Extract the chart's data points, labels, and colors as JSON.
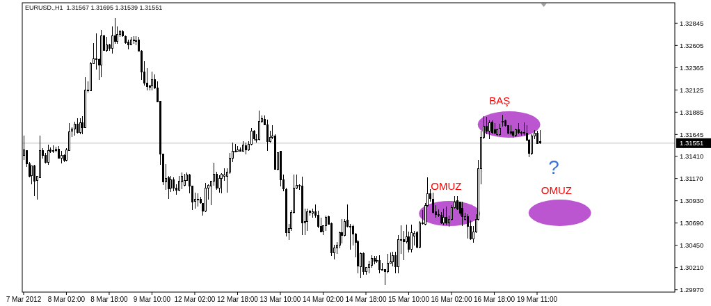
{
  "chart_data": {
    "type": "candlestick",
    "title": "EURUSD.,H1  1.31567 1.31695 1.31539 1.31551",
    "color": "#000000",
    "categories": [
      "7 Mar 2012",
      null,
      null,
      null,
      null,
      null,
      null,
      null,
      null,
      null,
      null,
      null,
      null,
      null,
      null,
      null,
      "8 Mar 02:00",
      null,
      null,
      null,
      null,
      null,
      null,
      null,
      null,
      null,
      null,
      null,
      null,
      null,
      null,
      null,
      "8 Mar 18:00",
      null,
      null,
      null,
      null,
      null,
      null,
      null,
      null,
      null,
      null,
      null,
      null,
      null,
      null,
      null,
      "9 Mar 10:00",
      null,
      null,
      null,
      null,
      null,
      null,
      null,
      null,
      null,
      null,
      null,
      null,
      null,
      null,
      null,
      "12 Mar 02:00",
      null,
      null,
      null,
      null,
      null,
      null,
      null,
      null,
      null,
      null,
      null,
      null,
      null,
      null,
      null,
      "12 Mar 18:00",
      null,
      null,
      null,
      null,
      null,
      null,
      null,
      null,
      null,
      null,
      null,
      null,
      null,
      null,
      null,
      "13 Mar 10:00",
      null,
      null,
      null,
      null,
      null,
      null,
      null,
      null,
      null,
      null,
      null,
      null,
      null,
      null,
      null,
      "14 Mar 02:00",
      null,
      null,
      null,
      null,
      null,
      null,
      null,
      null,
      null,
      null,
      null,
      null,
      null,
      null,
      null,
      "14 Mar 18:00",
      null,
      null,
      null,
      null,
      null,
      null,
      null,
      null,
      null,
      null,
      null,
      null,
      null,
      null,
      null,
      "15 Mar 10:00",
      null,
      null,
      null,
      null,
      null,
      null,
      null,
      null,
      null,
      null,
      null,
      null,
      null,
      null,
      null,
      "16 Mar 02:00",
      null,
      null,
      null,
      null,
      null,
      null,
      null,
      null,
      null,
      null,
      null,
      null,
      null,
      null,
      null,
      "16 Mar 18:00",
      null,
      null,
      null,
      null,
      null,
      null,
      null,
      null,
      null,
      null,
      null,
      null,
      null,
      null,
      null,
      "19 Mar 11:00",
      null,
      null,
      null,
      null,
      null,
      null,
      null,
      null,
      null,
      null,
      null,
      null,
      null,
      null,
      null,
      null,
      null,
      null,
      null,
      null,
      null,
      null,
      null,
      null,
      null,
      null,
      null,
      null,
      null,
      null,
      null,
      null,
      null,
      null,
      null,
      null,
      null,
      null,
      null,
      null,
      null,
      null,
      null,
      null,
      null,
      null,
      null,
      null,
      null,
      null,
      null
    ],
    "ohlc": [
      [
        1.3142,
        1.31632,
        1.3137,
        1.31482
      ],
      [
        1.3147,
        1.3147,
        1.31295,
        1.31332
      ],
      [
        1.31332,
        1.31345,
        1.31182,
        1.31195
      ],
      [
        1.312,
        1.31307,
        1.31107,
        1.31307
      ],
      [
        1.31307,
        1.3132,
        1.30982,
        1.31145
      ],
      [
        1.3115,
        1.31195,
        1.30945,
        1.31195
      ],
      [
        1.31182,
        1.31632,
        1.31182,
        1.3147
      ],
      [
        1.3147,
        1.315,
        1.31382,
        1.3142
      ],
      [
        1.3142,
        1.31445,
        1.31332,
        1.31345
      ],
      [
        1.31345,
        1.31532,
        1.31315,
        1.3147
      ],
      [
        1.31482,
        1.31507,
        1.31445,
        1.31465
      ],
      [
        1.31475,
        1.31525,
        1.31445,
        1.31462
      ],
      [
        1.3147,
        1.31512,
        1.3145,
        1.31487
      ],
      [
        1.3149,
        1.3152,
        1.31382,
        1.3139
      ],
      [
        1.3139,
        1.3147,
        1.31332,
        1.3142
      ],
      [
        1.3142,
        1.31432,
        1.3135,
        1.31365
      ],
      [
        1.31365,
        1.31495,
        1.31357,
        1.31482
      ],
      [
        1.31475,
        1.3177,
        1.3147,
        1.31675
      ],
      [
        1.31682,
        1.3172,
        1.3162,
        1.31707
      ],
      [
        1.31707,
        1.31782,
        1.31632,
        1.31757
      ],
      [
        1.31757,
        1.3182,
        1.31657,
        1.3167
      ],
      [
        1.3167,
        1.3182,
        1.31645,
        1.31775
      ],
      [
        1.31775,
        1.31845,
        1.3165,
        1.3172
      ],
      [
        1.3172,
        1.32265,
        1.31715,
        1.32125
      ],
      [
        1.32125,
        1.3222,
        1.32095,
        1.3212
      ],
      [
        1.3212,
        1.32427,
        1.32115,
        1.32412
      ],
      [
        1.32412,
        1.32632,
        1.32407,
        1.32462
      ],
      [
        1.32462,
        1.32732,
        1.32345,
        1.32452
      ],
      [
        1.32455,
        1.32462,
        1.32232,
        1.32395
      ],
      [
        1.32395,
        1.3277,
        1.32265,
        1.32712
      ],
      [
        1.32712,
        1.3272,
        1.32545,
        1.3255
      ],
      [
        1.3255,
        1.32695,
        1.32532,
        1.32615
      ],
      [
        1.32612,
        1.3262,
        1.32545,
        1.32575
      ],
      [
        1.32575,
        1.32807,
        1.32515,
        1.32707
      ],
      [
        1.32712,
        1.329,
        1.3262,
        1.3265
      ],
      [
        1.3265,
        1.32807,
        1.32625,
        1.32725
      ],
      [
        1.32725,
        1.3277,
        1.32695,
        1.32757
      ],
      [
        1.32757,
        1.3277,
        1.32695,
        1.32707
      ],
      [
        1.32702,
        1.32712,
        1.3262,
        1.32632
      ],
      [
        1.3264,
        1.3267,
        1.32565,
        1.32612
      ],
      [
        1.32612,
        1.32695,
        1.32607,
        1.32665
      ],
      [
        1.32662,
        1.32702,
        1.3262,
        1.32657
      ],
      [
        1.32657,
        1.32707,
        1.32607,
        1.32657
      ],
      [
        1.32665,
        1.32695,
        1.32537,
        1.32545
      ],
      [
        1.32545,
        1.32557,
        1.32232,
        1.3232
      ],
      [
        1.3232,
        1.32432,
        1.3217,
        1.322
      ],
      [
        1.322,
        1.32357,
        1.3212,
        1.32165
      ],
      [
        1.3217,
        1.32182,
        1.3212,
        1.32157
      ],
      [
        1.3217,
        1.3232,
        1.3212,
        1.32237
      ],
      [
        1.32237,
        1.32295,
        1.32132,
        1.32145
      ],
      [
        1.32145,
        1.3222,
        1.31995,
        1.32
      ],
      [
        1.32007,
        1.32007,
        1.3132,
        1.31432
      ],
      [
        1.31437,
        1.31437,
        1.311,
        1.31132
      ],
      [
        1.31132,
        1.31325,
        1.31045,
        1.31175
      ],
      [
        1.31182,
        1.31195,
        1.3095,
        1.31057
      ],
      [
        1.31065,
        1.31195,
        1.31025,
        1.31157
      ],
      [
        1.31157,
        1.31182,
        1.31032,
        1.31065
      ],
      [
        1.3107,
        1.31107,
        1.30995,
        1.31045
      ],
      [
        1.31045,
        1.31195,
        1.31032,
        1.3114
      ],
      [
        1.31132,
        1.31232,
        1.31057,
        1.31195
      ],
      [
        1.311,
        1.3122,
        1.31082,
        1.3115
      ],
      [
        1.3115,
        1.31232,
        1.31145,
        1.31212
      ],
      [
        1.31212,
        1.3122,
        1.31007,
        1.31087
      ],
      [
        1.31087,
        1.31095,
        1.30832,
        1.3092
      ],
      [
        1.30925,
        1.3102,
        1.30845,
        1.3095
      ],
      [
        1.30945,
        1.31007,
        1.3087,
        1.30945
      ],
      [
        1.3095,
        1.3097,
        1.30895,
        1.30907
      ],
      [
        1.30902,
        1.30907,
        1.3077,
        1.3082
      ],
      [
        1.3082,
        1.31125,
        1.30807,
        1.3107
      ],
      [
        1.3107,
        1.31107,
        1.30945,
        1.31095
      ],
      [
        1.3109,
        1.31145,
        1.30882,
        1.3114
      ],
      [
        1.3114,
        1.3134,
        1.31095,
        1.3122
      ],
      [
        1.3122,
        1.31245,
        1.31045,
        1.3107
      ],
      [
        1.3107,
        1.31207,
        1.3102,
        1.3117
      ],
      [
        1.3117,
        1.31225,
        1.31007,
        1.31215
      ],
      [
        1.31195,
        1.31282,
        1.31145,
        1.31212
      ],
      [
        1.31195,
        1.31282,
        1.3102,
        1.3124
      ],
      [
        1.3124,
        1.31445,
        1.3122,
        1.3139
      ],
      [
        1.3139,
        1.31555,
        1.31345,
        1.31465
      ],
      [
        1.31467,
        1.31545,
        1.31457,
        1.31467
      ],
      [
        1.31467,
        1.3152,
        1.31457,
        1.31482
      ],
      [
        1.31482,
        1.31507,
        1.31457,
        1.31465
      ],
      [
        1.31465,
        1.31575,
        1.31457,
        1.31532
      ],
      [
        1.31525,
        1.31557,
        1.31432,
        1.31482
      ],
      [
        1.31482,
        1.3157,
        1.3147,
        1.31537
      ],
      [
        1.31537,
        1.31715,
        1.31525,
        1.31682
      ],
      [
        1.31682,
        1.31695,
        1.31582,
        1.316
      ],
      [
        1.31595,
        1.31645,
        1.31557,
        1.31595
      ],
      [
        1.31595,
        1.319,
        1.31582,
        1.3179
      ],
      [
        1.3179,
        1.3185,
        1.3177,
        1.31815
      ],
      [
        1.31812,
        1.3185,
        1.31745,
        1.3175
      ],
      [
        1.31752,
        1.31807,
        1.3147,
        1.3157
      ],
      [
        1.3157,
        1.31682,
        1.31557,
        1.31615
      ],
      [
        1.31615,
        1.31745,
        1.31595,
        1.31632
      ],
      [
        1.31632,
        1.31645,
        1.31265,
        1.3127
      ],
      [
        1.3127,
        1.31452,
        1.31257,
        1.3145
      ],
      [
        1.31465,
        1.3147,
        1.31082,
        1.31157
      ],
      [
        1.31157,
        1.31215,
        1.31032,
        1.31057
      ],
      [
        1.31052,
        1.3107,
        1.30545,
        1.3059
      ],
      [
        1.3059,
        1.30682,
        1.30507,
        1.30632
      ],
      [
        1.30632,
        1.30832,
        1.30607,
        1.30807
      ],
      [
        1.30807,
        1.31212,
        1.30795,
        1.3107
      ],
      [
        1.3107,
        1.31212,
        1.31057,
        1.311
      ],
      [
        1.31095,
        1.31107,
        1.31045,
        1.31095
      ],
      [
        1.3109,
        1.3119,
        1.30557,
        1.30695
      ],
      [
        1.30695,
        1.30845,
        1.30557,
        1.30707
      ],
      [
        1.30707,
        1.30845,
        1.30607,
        1.30815
      ],
      [
        1.3082,
        1.30832,
        1.3077,
        1.30802
      ],
      [
        1.30795,
        1.30845,
        1.30745,
        1.30815
      ],
      [
        1.30815,
        1.3089,
        1.30745,
        1.30775
      ],
      [
        1.30775,
        1.3082,
        1.30632,
        1.30657
      ],
      [
        1.30657,
        1.30745,
        1.3059,
        1.30595
      ],
      [
        1.306,
        1.30665,
        1.30557,
        1.30665
      ],
      [
        1.30665,
        1.3077,
        1.30607,
        1.30752
      ],
      [
        1.30757,
        1.3077,
        1.3067,
        1.30677
      ],
      [
        1.30682,
        1.30695,
        1.30332,
        1.3037
      ],
      [
        1.3037,
        1.30457,
        1.30295,
        1.30425
      ],
      [
        1.30425,
        1.30482,
        1.30357,
        1.30455
      ],
      [
        1.30455,
        1.30595,
        1.3042,
        1.3059
      ],
      [
        1.3059,
        1.30732,
        1.3047,
        1.30557
      ],
      [
        1.30557,
        1.30732,
        1.30545,
        1.30707
      ],
      [
        1.3072,
        1.3089,
        1.30645,
        1.30652
      ],
      [
        1.30657,
        1.30682,
        1.304,
        1.3065
      ],
      [
        1.30657,
        1.3067,
        1.30445,
        1.30575
      ],
      [
        1.30575,
        1.30582,
        1.3032,
        1.30482
      ],
      [
        1.30487,
        1.30507,
        1.30145,
        1.30225
      ],
      [
        1.3022,
        1.3037,
        1.30095,
        1.30365
      ],
      [
        1.30365,
        1.3037,
        1.30132,
        1.3017
      ],
      [
        1.3017,
        1.30215,
        1.30132,
        1.30212
      ],
      [
        1.30212,
        1.30282,
        1.30145,
        1.30245
      ],
      [
        1.30232,
        1.30345,
        1.30207,
        1.30307
      ],
      [
        1.30307,
        1.30332,
        1.30245,
        1.30282
      ],
      [
        1.3029,
        1.30332,
        1.30257,
        1.3029
      ],
      [
        1.3029,
        1.30345,
        1.3015,
        1.3019
      ],
      [
        1.3019,
        1.30257,
        1.30182,
        1.3019
      ],
      [
        1.3019,
        1.30195,
        1.3002,
        1.30165
      ],
      [
        1.30165,
        1.30357,
        1.3015,
        1.30257
      ],
      [
        1.30257,
        1.3037,
        1.3025,
        1.30275
      ],
      [
        1.3027,
        1.30382,
        1.3022,
        1.3034
      ],
      [
        1.3034,
        1.30382,
        1.30145,
        1.3022
      ],
      [
        1.3022,
        1.30557,
        1.30145,
        1.30512
      ],
      [
        1.30515,
        1.30665,
        1.30357,
        1.30515
      ],
      [
        1.30515,
        1.30607,
        1.3029,
        1.3049
      ],
      [
        1.3049,
        1.3067,
        1.3047,
        1.3054
      ],
      [
        1.30545,
        1.30595,
        1.3037,
        1.30407
      ],
      [
        1.30407,
        1.3067,
        1.3037,
        1.3059
      ],
      [
        1.30552,
        1.30607,
        1.30445,
        1.30582
      ],
      [
        1.3059,
        1.30607,
        1.3042,
        1.30432
      ],
      [
        1.30432,
        1.30707,
        1.3042,
        1.30695
      ],
      [
        1.30682,
        1.30832,
        1.3067,
        1.30695
      ],
      [
        1.30675,
        1.30907,
        1.30665,
        1.30882
      ],
      [
        1.30882,
        1.31182,
        1.3087,
        1.31007
      ],
      [
        1.31007,
        1.31057,
        1.3092,
        1.30957
      ],
      [
        1.30945,
        1.3102,
        1.30795,
        1.30807
      ],
      [
        1.30815,
        1.30882,
        1.30745,
        1.30782
      ],
      [
        1.30782,
        1.3084,
        1.30757,
        1.30782
      ],
      [
        1.30775,
        1.30807,
        1.30682,
        1.30695
      ],
      [
        1.30695,
        1.30845,
        1.30665,
        1.30752
      ],
      [
        1.30752,
        1.3087,
        1.30665,
        1.30695
      ],
      [
        1.30695,
        1.3077,
        1.3065,
        1.30732
      ],
      [
        1.30732,
        1.30882,
        1.3072,
        1.30857
      ],
      [
        1.30857,
        1.30982,
        1.30845,
        1.3092
      ],
      [
        1.30932,
        1.30982,
        1.30832,
        1.30845
      ],
      [
        1.30915,
        1.3092,
        1.3077,
        1.30795
      ],
      [
        1.3085,
        1.3092,
        1.30657,
        1.30757
      ],
      [
        1.30732,
        1.308,
        1.3072,
        1.30757
      ],
      [
        1.30757,
        1.30782,
        1.3052,
        1.30657
      ],
      [
        1.30657,
        1.3072,
        1.30507,
        1.3052
      ],
      [
        1.3052,
        1.30657,
        1.30475,
        1.30595
      ],
      [
        1.30595,
        1.30782,
        1.30582,
        1.30732
      ],
      [
        1.30732,
        1.3137,
        1.3072,
        1.31277
      ],
      [
        1.31277,
        1.31682,
        1.31107,
        1.31612
      ],
      [
        1.31612,
        1.31845,
        1.31595,
        1.31732
      ],
      [
        1.31732,
        1.31832,
        1.31645,
        1.31682
      ],
      [
        1.31682,
        1.31795,
        1.31595,
        1.3177
      ],
      [
        1.31782,
        1.31795,
        1.31645,
        1.3167
      ],
      [
        1.31695,
        1.3177,
        1.31645,
        1.31657
      ],
      [
        1.31645,
        1.31707,
        1.31632,
        1.31695
      ],
      [
        1.31645,
        1.31757,
        1.31632,
        1.31712
      ],
      [
        1.31787,
        1.31857,
        1.31732,
        1.31787
      ],
      [
        1.31795,
        1.31807,
        1.31732,
        1.31745
      ],
      [
        1.31745,
        1.31745,
        1.31645,
        1.31662
      ],
      [
        1.31675,
        1.31745,
        1.3164,
        1.31657
      ],
      [
        1.31675,
        1.31682,
        1.31607,
        1.3164
      ],
      [
        1.3164,
        1.31707,
        1.3162,
        1.31695
      ],
      [
        1.31695,
        1.3177,
        1.31645,
        1.3167
      ],
      [
        1.3167,
        1.31682,
        1.31632,
        1.3167
      ],
      [
        1.3167,
        1.31775,
        1.31632,
        1.31657
      ],
      [
        1.31657,
        1.31745,
        1.3157,
        1.31582
      ],
      [
        1.31582,
        1.31595,
        1.314,
        1.31445
      ],
      [
        1.31445,
        1.31645,
        1.3142,
        1.31632
      ],
      [
        1.31632,
        1.3169,
        1.31595,
        1.31662
      ],
      [
        1.31662,
        1.31687,
        1.31545,
        1.3155
      ],
      [
        1.31567,
        1.31695,
        1.31539,
        1.31551
      ],
      null,
      null,
      null,
      null,
      null,
      null,
      null,
      null,
      null,
      null,
      null,
      null,
      null,
      null,
      null,
      null,
      null,
      null,
      null,
      null,
      null,
      null,
      null,
      null,
      null,
      null,
      null,
      null,
      null,
      null,
      null,
      null,
      null,
      null,
      null,
      null,
      null,
      null,
      null,
      null,
      null,
      null,
      null,
      null,
      null,
      null,
      null,
      null,
      null,
      null
    ],
    "ylim": [
      1.29945,
      1.33065
    ],
    "yticks": [
      {
        "value": 1.32845,
        "label": "1.32845"
      },
      {
        "value": 1.32605,
        "label": "1.32605"
      },
      {
        "value": 1.32365,
        "label": "1.32365"
      },
      {
        "value": 1.32125,
        "label": "1.32125"
      },
      {
        "value": 1.31885,
        "label": "1.31885"
      },
      {
        "value": 1.31645,
        "label": "1.31645"
      },
      {
        "value": 1.3141,
        "label": "1.31410"
      },
      {
        "value": 1.3117,
        "label": "1.31170"
      },
      {
        "value": 1.3093,
        "label": "1.30930"
      },
      {
        "value": 1.3069,
        "label": "1.30690"
      },
      {
        "value": 1.3045,
        "label": "1.30450"
      },
      {
        "value": 1.3021,
        "label": "1.30210"
      },
      {
        "value": 1.2997,
        "label": "1.29970"
      }
    ],
    "ref_lines": [
      {
        "axis": "y",
        "value": 1.31551,
        "label": "1.31551",
        "color": "#c0c0c0"
      }
    ],
    "annotations": [
      "OMUZ",
      "BAŞ",
      "?",
      "OMUZ"
    ]
  }
}
